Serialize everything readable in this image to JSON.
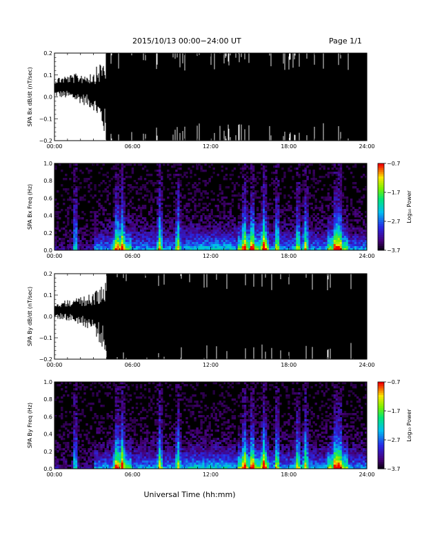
{
  "header": {
    "title": "2015/10/13  00:00−24:00 UT",
    "page": "Page 1/1"
  },
  "xlabel": "Universal Time (hh:mm)",
  "chart_data": [
    {
      "type": "line",
      "ylabel": "SPA Bx dB/dt (nT/sec)",
      "x_ticks": [
        "00:00",
        "06:00",
        "12:00",
        "18:00",
        "24:00"
      ],
      "xlim_hours": [
        0,
        24
      ],
      "y_ticks": [
        "0.2",
        "0.1",
        "0.0",
        "−0.1",
        "−0.2"
      ],
      "ylim": [
        -0.2,
        0.2
      ],
      "series": [
        {
          "x_hours": [
            0,
            1,
            2,
            3,
            3.5,
            4,
            6,
            8,
            10,
            12,
            14,
            16,
            18,
            20,
            22,
            24
          ],
          "min": [
            0.0,
            -0.01,
            -0.03,
            -0.06,
            -0.12,
            -0.2,
            -0.2,
            -0.2,
            -0.2,
            -0.2,
            -0.2,
            -0.2,
            -0.2,
            -0.2,
            -0.2,
            -0.2
          ],
          "max": [
            0.09,
            0.1,
            0.11,
            0.12,
            0.16,
            0.2,
            0.2,
            0.2,
            0.2,
            0.2,
            0.2,
            0.2,
            0.2,
            0.2,
            0.2,
            0.2
          ]
        }
      ]
    },
    {
      "type": "heatmap",
      "ylabel": "SPA Bx Freq (Hz)",
      "x_ticks": [
        "00:00",
        "06:00",
        "12:00",
        "18:00",
        "24:00"
      ],
      "xlim_hours": [
        0,
        24
      ],
      "y_ticks": [
        "1.0",
        "0.8",
        "0.6",
        "0.4",
        "0.2",
        "0.0"
      ],
      "ylim": [
        0,
        1.0
      ],
      "colorbar": {
        "label": "Log₁₀ Power",
        "ticks": [
          "−0.7",
          "−1.7",
          "−2.7",
          "−3.7"
        ],
        "range": [
          -3.7,
          -0.7
        ]
      },
      "bursts_hours": [
        1.6,
        4.8,
        5.2,
        8.1,
        9.5,
        14.6,
        15.2,
        16.1,
        17.1,
        18.7,
        19.3,
        21.6,
        21.9
      ]
    },
    {
      "type": "line",
      "ylabel": "SPA By dB/dt (nT/sec)",
      "x_ticks": [
        "00:00",
        "06:00",
        "12:00",
        "18:00",
        "24:00"
      ],
      "xlim_hours": [
        0,
        24
      ],
      "y_ticks": [
        "0.2",
        "0.1",
        "0.0",
        "−0.1",
        "−0.2"
      ],
      "ylim": [
        -0.2,
        0.2
      ],
      "series": [
        {
          "x_hours": [
            0,
            1,
            2,
            3,
            3.5,
            4,
            6,
            8,
            10,
            12,
            14,
            16,
            18,
            20,
            22,
            24
          ],
          "min": [
            -0.01,
            -0.02,
            -0.04,
            -0.07,
            -0.13,
            -0.2,
            -0.2,
            -0.2,
            -0.2,
            -0.2,
            -0.2,
            -0.2,
            -0.2,
            -0.2,
            -0.2,
            -0.2
          ],
          "max": [
            0.07,
            0.08,
            0.09,
            0.11,
            0.16,
            0.2,
            0.2,
            0.2,
            0.2,
            0.2,
            0.2,
            0.2,
            0.2,
            0.2,
            0.2,
            0.2
          ]
        }
      ]
    },
    {
      "type": "heatmap",
      "ylabel": "SPA By Freq (Hz)",
      "x_ticks": [
        "00:00",
        "06:00",
        "12:00",
        "18:00",
        "24:00"
      ],
      "xlim_hours": [
        0,
        24
      ],
      "y_ticks": [
        "1.0",
        "0.8",
        "0.6",
        "0.4",
        "0.2",
        "0.0"
      ],
      "ylim": [
        0,
        1.0
      ],
      "colorbar": {
        "label": "Log₁₀ Power",
        "ticks": [
          "−0.7",
          "−1.7",
          "−2.7",
          "−3.7"
        ],
        "range": [
          -3.7,
          -0.7
        ]
      },
      "bursts_hours": [
        1.6,
        4.8,
        5.2,
        8.1,
        9.5,
        14.6,
        15.2,
        16.1,
        17.1,
        18.7,
        19.3,
        21.6,
        21.9
      ]
    }
  ]
}
